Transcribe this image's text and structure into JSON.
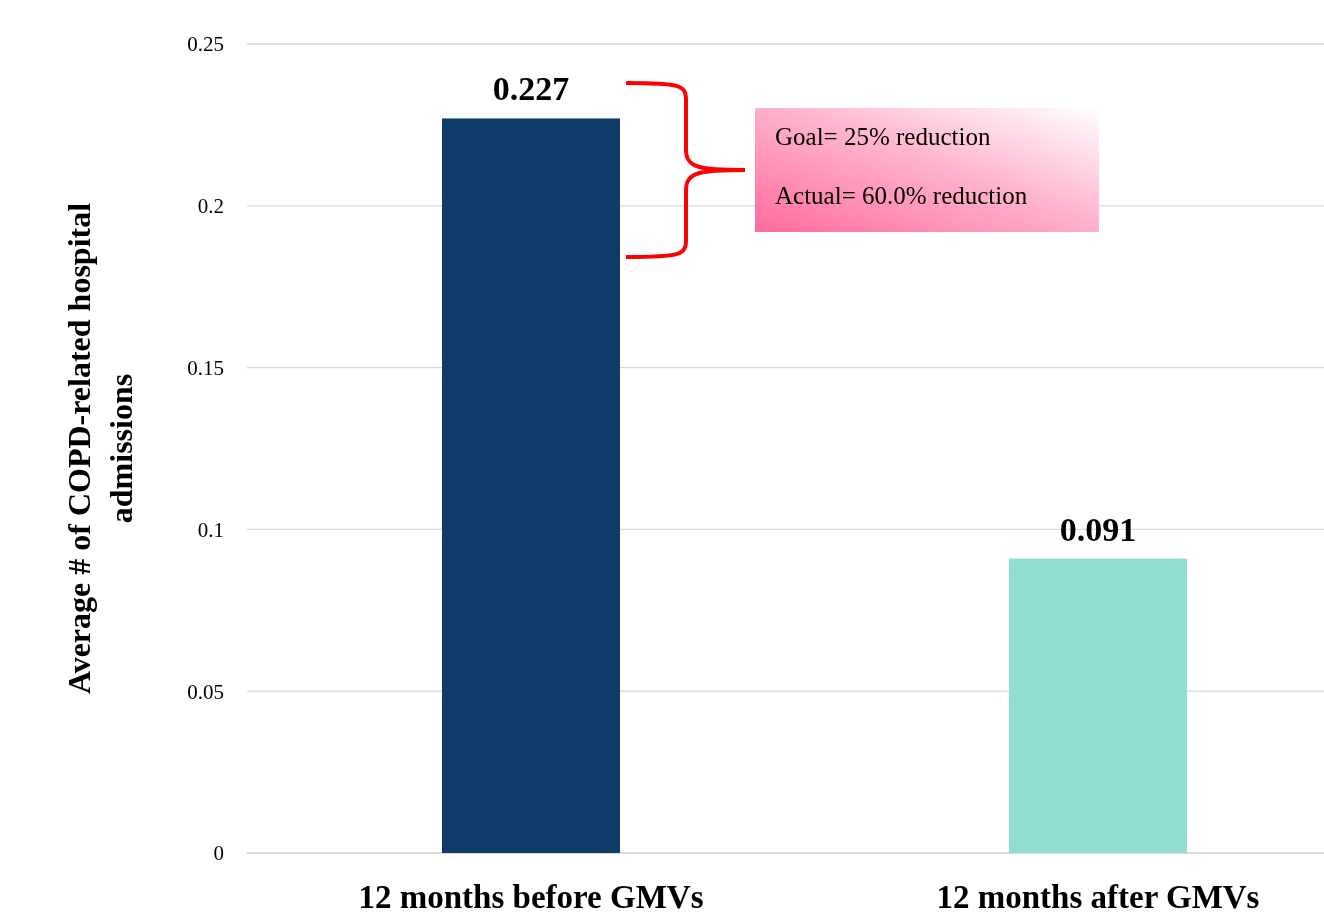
{
  "chart_data": {
    "type": "bar",
    "ylabel": "Average # of COPD-related hospital\nadmissions",
    "categories": [
      "12 months before GMVs",
      "12 months after GMVs"
    ],
    "values": [
      0.227,
      0.091
    ],
    "colors": [
      "#0f3b69",
      "#92ddd4"
    ],
    "ylim": [
      0,
      0.25
    ],
    "yticks": [
      0,
      0.05,
      0.1,
      0.15,
      0.2,
      0.25
    ],
    "grid": "y",
    "data_labels": true,
    "annotations": [
      "Goal= 25% reduction",
      "Actual= 60.0% reduction"
    ]
  }
}
